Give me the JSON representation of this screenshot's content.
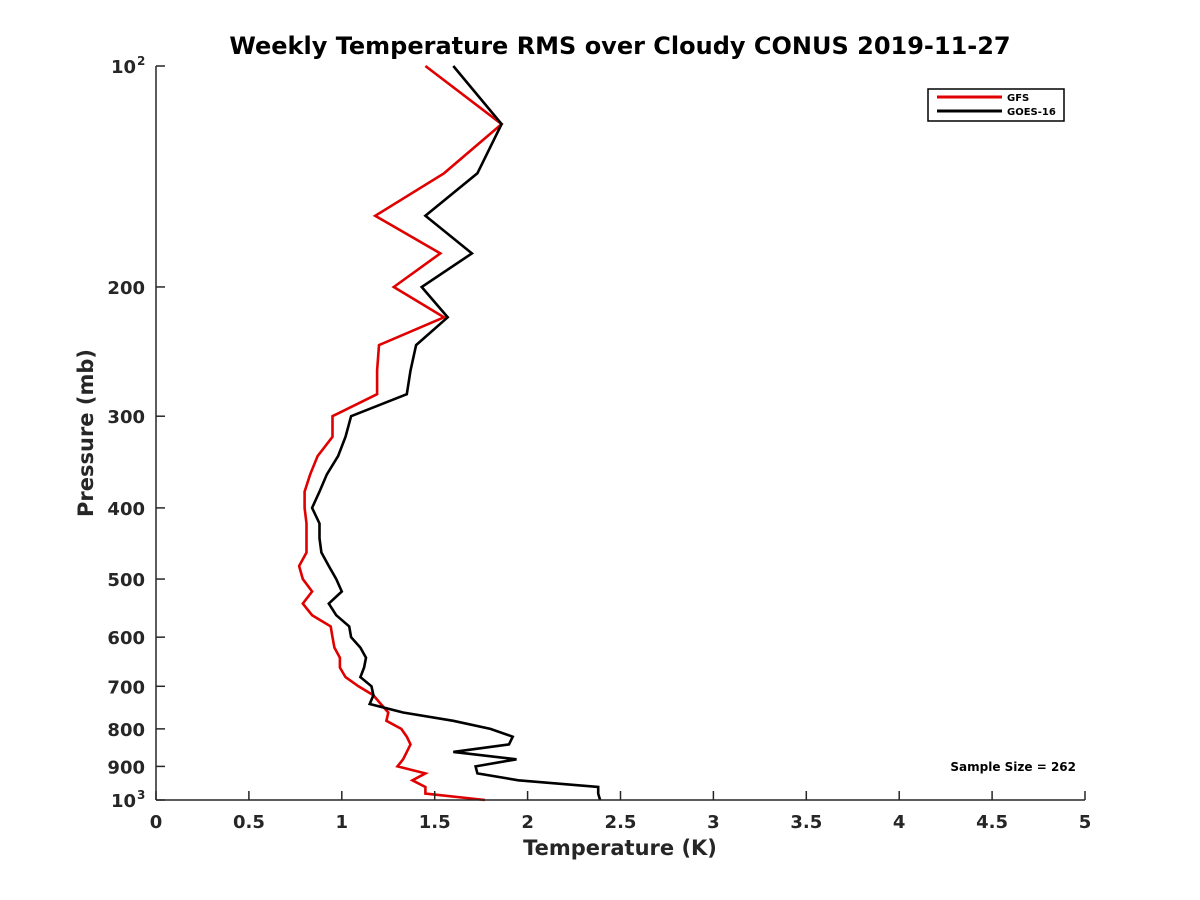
{
  "chart_data": {
    "type": "line",
    "title": "Weekly Temperature RMS over Cloudy CONUS 2019-11-27",
    "xlabel": "Temperature (K)",
    "ylabel": "Pressure (mb)",
    "xlim": [
      0,
      5
    ],
    "ylim": [
      100,
      1000
    ],
    "y_scale": "log",
    "y_reversed": true,
    "x_ticks": [
      0,
      0.5,
      1,
      1.5,
      2,
      2.5,
      3,
      3.5,
      4,
      4.5,
      5
    ],
    "x_tick_labels": [
      "0",
      "0.5",
      "1",
      "1.5",
      "2",
      "2.5",
      "3",
      "3.5",
      "4",
      "4.5",
      "5"
    ],
    "y_ticks": [
      {
        "value": 100,
        "label": "10",
        "exp": "2"
      },
      {
        "value": 200,
        "label": "200"
      },
      {
        "value": 300,
        "label": "300"
      },
      {
        "value": 400,
        "label": "400"
      },
      {
        "value": 500,
        "label": "500"
      },
      {
        "value": 600,
        "label": "600"
      },
      {
        "value": 700,
        "label": "700"
      },
      {
        "value": 800,
        "label": "800"
      },
      {
        "value": 900,
        "label": "900"
      },
      {
        "value": 1000,
        "label": "10",
        "exp": "3"
      }
    ],
    "grid": false,
    "legend_position": "top-right",
    "series": [
      {
        "name": "GFS",
        "color": "#e00000",
        "points": [
          [
            1.45,
            100
          ],
          [
            1.86,
            120
          ],
          [
            1.55,
            140
          ],
          [
            1.18,
            160
          ],
          [
            1.53,
            180
          ],
          [
            1.28,
            200
          ],
          [
            1.55,
            220
          ],
          [
            1.2,
            240
          ],
          [
            1.19,
            260
          ],
          [
            1.19,
            280
          ],
          [
            0.95,
            300
          ],
          [
            0.95,
            320
          ],
          [
            0.87,
            340
          ],
          [
            0.83,
            360
          ],
          [
            0.8,
            380
          ],
          [
            0.8,
            400
          ],
          [
            0.81,
            420
          ],
          [
            0.81,
            440
          ],
          [
            0.81,
            460
          ],
          [
            0.77,
            480
          ],
          [
            0.79,
            500
          ],
          [
            0.84,
            520
          ],
          [
            0.79,
            540
          ],
          [
            0.84,
            560
          ],
          [
            0.94,
            580
          ],
          [
            0.95,
            600
          ],
          [
            0.96,
            620
          ],
          [
            0.99,
            640
          ],
          [
            0.99,
            660
          ],
          [
            1.02,
            680
          ],
          [
            1.09,
            700
          ],
          [
            1.17,
            720
          ],
          [
            1.21,
            740
          ],
          [
            1.25,
            760
          ],
          [
            1.24,
            780
          ],
          [
            1.32,
            800
          ],
          [
            1.35,
            820
          ],
          [
            1.37,
            840
          ],
          [
            1.35,
            860
          ],
          [
            1.33,
            880
          ],
          [
            1.3,
            900
          ],
          [
            1.45,
            920
          ],
          [
            1.38,
            940
          ],
          [
            1.45,
            960
          ],
          [
            1.45,
            980
          ],
          [
            1.77,
            1000
          ]
        ]
      },
      {
        "name": "GOES-16",
        "color": "#000000",
        "points": [
          [
            1.6,
            100
          ],
          [
            1.86,
            120
          ],
          [
            1.73,
            140
          ],
          [
            1.45,
            160
          ],
          [
            1.7,
            180
          ],
          [
            1.43,
            200
          ],
          [
            1.57,
            220
          ],
          [
            1.4,
            240
          ],
          [
            1.37,
            260
          ],
          [
            1.35,
            280
          ],
          [
            1.05,
            300
          ],
          [
            1.02,
            320
          ],
          [
            0.98,
            340
          ],
          [
            0.92,
            360
          ],
          [
            0.88,
            380
          ],
          [
            0.84,
            400
          ],
          [
            0.88,
            420
          ],
          [
            0.88,
            440
          ],
          [
            0.89,
            460
          ],
          [
            0.93,
            480
          ],
          [
            0.97,
            500
          ],
          [
            1.0,
            520
          ],
          [
            0.93,
            540
          ],
          [
            0.97,
            560
          ],
          [
            1.04,
            580
          ],
          [
            1.05,
            600
          ],
          [
            1.1,
            620
          ],
          [
            1.13,
            640
          ],
          [
            1.12,
            660
          ],
          [
            1.1,
            680
          ],
          [
            1.16,
            700
          ],
          [
            1.17,
            720
          ],
          [
            1.15,
            740
          ],
          [
            1.33,
            760
          ],
          [
            1.6,
            780
          ],
          [
            1.8,
            800
          ],
          [
            1.92,
            820
          ],
          [
            1.9,
            840
          ],
          [
            1.6,
            860
          ],
          [
            1.94,
            880
          ],
          [
            1.72,
            900
          ],
          [
            1.73,
            920
          ],
          [
            1.95,
            940
          ],
          [
            2.38,
            960
          ],
          [
            2.38,
            980
          ],
          [
            2.39,
            1000
          ]
        ]
      }
    ],
    "annotation": "Sample Size = 262"
  }
}
